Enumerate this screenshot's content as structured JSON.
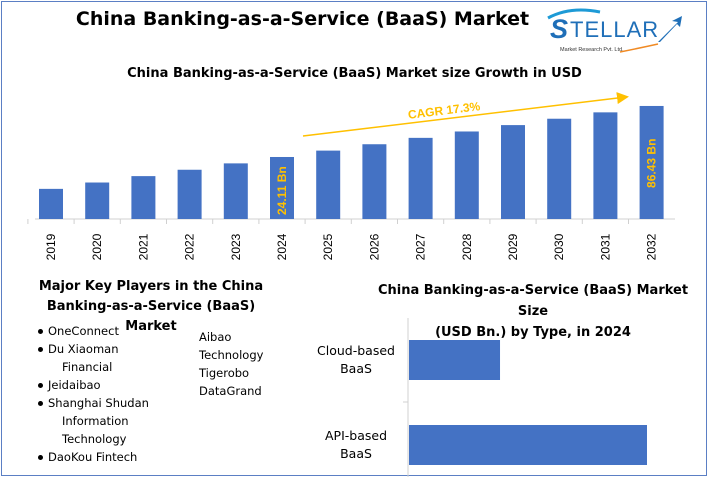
{
  "title": "China Banking-as-a-Service (BaaS) Market",
  "logo": {
    "text": "STELLAR",
    "tagline": "Market Research Pvt. Ltd."
  },
  "colors": {
    "bar": "#4472c4",
    "accent": "#ffc000",
    "border": "#5b7fc4"
  },
  "chart_data": [
    {
      "type": "bar",
      "title": "China Banking-as-a-Service (BaaS) Market size Growth in USD",
      "categories": [
        "2019",
        "2020",
        "2021",
        "2022",
        "2023",
        "2024",
        "2025",
        "2026",
        "2027",
        "2028",
        "2029",
        "2030",
        "2031",
        "2032"
      ],
      "values": [
        10.86,
        12.73,
        14.94,
        17.52,
        20.55,
        24.11,
        28.28,
        33.17,
        38.91,
        45.64,
        53.54,
        62.8,
        73.66,
        86.43
      ],
      "unit": "USD Bn",
      "data_labels": {
        "2024": "24.11 Bn",
        "2032": "86.43 Bn"
      },
      "annotation": "CAGR  17.3%",
      "xlabel": "",
      "ylabel": "",
      "grid": false
    },
    {
      "type": "bar",
      "orientation": "horizontal",
      "title_line1": "China Banking-as-a-Service (BaaS) Market Size",
      "title_line2": "(USD Bn.) by Type, in 2024",
      "categories": [
        [
          "Cloud-based",
          "BaaS"
        ],
        [
          "API-based",
          "BaaS"
        ]
      ],
      "values": [
        6.67,
        17.44
      ],
      "grid": false
    }
  ],
  "key_players": {
    "title_line1": "Major Key Players in the China",
    "title_line2": "Banking-as-a-Service (BaaS) Market",
    "left": [
      {
        "lines": [
          "OneConnect"
        ]
      },
      {
        "lines": [
          "Du Xiaoman",
          "Financial"
        ]
      },
      {
        "lines": [
          "Jeidaibao"
        ]
      },
      {
        "lines": [
          "Shanghai Shudan",
          "Information",
          "Technology"
        ]
      },
      {
        "lines": [
          "DaoKou Fintech"
        ]
      }
    ],
    "right": [
      "Aibao",
      "Technology",
      "Tigerobo",
      "DataGrand"
    ]
  }
}
